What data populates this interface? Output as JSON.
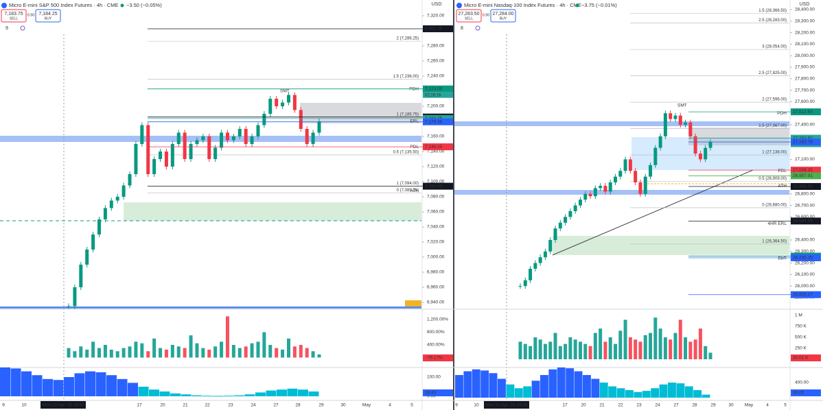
{
  "panels": [
    {
      "title": "Micro E-mini S&P 500 Index Futures · 4h · CME",
      "change": "−3.50 (−0.05%)",
      "sell_price": "7,183.75",
      "sell_label": "SELL",
      "spread": "0.50",
      "buy_price": "7,184.25",
      "buy_label": "BUY",
      "currency": "USD",
      "indicator_count": "9",
      "price_ticks": [
        {
          "value": 7320,
          "label": "7,320.00"
        },
        {
          "value": 7300,
          "label": "7,300.00"
        },
        {
          "value": 7280,
          "label": "7,280.00"
        },
        {
          "value": 7260,
          "label": "7,260.00"
        },
        {
          "value": 7240,
          "label": "7,240.00"
        },
        {
          "value": 7220,
          "label": "7,220.00"
        },
        {
          "value": 7200,
          "label": "7,200.00"
        },
        {
          "value": 7180,
          "label": "7,180.00"
        },
        {
          "value": 7160,
          "label": "7,160.00"
        },
        {
          "value": 7140,
          "label": "7,140.00"
        },
        {
          "value": 7120,
          "label": "7,120.00"
        },
        {
          "value": 7100,
          "label": "7,100.00"
        },
        {
          "value": 7080,
          "label": "7,080.00"
        },
        {
          "value": 7060,
          "label": "7,060.00"
        },
        {
          "value": 7040,
          "label": "7,040.00"
        },
        {
          "value": 7020,
          "label": "7,020.00"
        },
        {
          "value": 7000,
          "label": "7,000.00"
        },
        {
          "value": 6980,
          "label": "6,980.00"
        },
        {
          "value": 6960,
          "label": "6,960.00"
        },
        {
          "value": 6940,
          "label": "6,940.00"
        }
      ],
      "tags": [
        {
          "value": 7302.75,
          "label": "7,302.75",
          "color": "#131722"
        },
        {
          "value": 7223,
          "label": "7,223.00",
          "color": "#089981"
        },
        {
          "value": 7185.75,
          "label": "7,185.75",
          "color": "#131722"
        },
        {
          "value": 7183.75,
          "label": "7,183.75",
          "color": "#26a69a"
        },
        {
          "value": 7179.38,
          "label": "7,179.38",
          "color": "#2962ff"
        },
        {
          "value": 7146.25,
          "label": "7,146.25",
          "color": "#f23645"
        },
        {
          "value": 7094,
          "label": "7,094.00",
          "color": "#131722"
        }
      ],
      "countdown": "02:28:16",
      "fib_labels": [
        {
          "value": 7286.25,
          "label": "2 (7,286.25)"
        },
        {
          "value": 7236,
          "label": "1.5 (7,236.00)"
        },
        {
          "value": 7185.75,
          "label": "1 (7,185.75)"
        },
        {
          "value": 7135.5,
          "label": "0.5 (7,135.50)"
        },
        {
          "value": 7094,
          "label": "1 (7,094.00)"
        },
        {
          "value": 7085.25,
          "label": "0 (7,085.25)"
        }
      ],
      "level_labels": [
        {
          "value": 7223,
          "label": "PDH",
          "color": "#089981"
        },
        {
          "value": 7180,
          "label": "ERL",
          "color": "#131722"
        },
        {
          "value": 7146.25,
          "label": "PDL",
          "color": "#f23645"
        },
        {
          "value": 7088,
          "label": "ATH",
          "color": "#131722"
        }
      ],
      "smt": "SMT",
      "closes": [
        6935,
        6960,
        6990,
        7010,
        7030,
        7050,
        7065,
        7075,
        7080,
        7095,
        7110,
        7150,
        7175,
        7110,
        7130,
        7140,
        7120,
        7150,
        7165,
        7130,
        7150,
        7155,
        7160,
        7130,
        7145,
        7165,
        7155,
        7160,
        7170,
        7150,
        7160,
        7175,
        7190,
        7210,
        7200,
        7205,
        7215,
        7195,
        7170,
        7150,
        7165,
        7180
      ],
      "volume_ticks": [
        {
          "value": 1200,
          "label": "1,200.00%"
        },
        {
          "value": 800,
          "label": "800.00%"
        },
        {
          "value": 400,
          "label": "400.00%"
        }
      ],
      "volume_tag": "−79.17%",
      "volume": [
        300,
        200,
        350,
        250,
        500,
        300,
        400,
        250,
        200,
        300,
        350,
        500,
        450,
        200,
        600,
        300,
        250,
        400,
        350,
        300,
        700,
        450,
        300,
        250,
        350,
        500,
        1300,
        400,
        300,
        350,
        450,
        500,
        800,
        400,
        300,
        250,
        600,
        350,
        400,
        300,
        200,
        100
      ],
      "osc_ticks": [
        {
          "value": 100,
          "label": "100.00"
        },
        {
          "value": 0,
          "label": "0.00"
        }
      ],
      "osc_tag": "18.83",
      "oscillator": [
        150,
        145,
        130,
        110,
        90,
        85,
        100,
        120,
        130,
        125,
        110,
        90,
        70,
        50,
        35,
        25,
        15,
        10,
        5,
        3,
        2,
        3,
        5,
        10,
        20,
        30,
        35,
        40,
        35,
        25
      ],
      "time_labels": [
        "9",
        "10",
        "Mon 13 Apr '26  18:00",
        "17",
        "20",
        "21",
        "22",
        "23",
        "24",
        "27",
        "28",
        "29",
        "30",
        "May",
        "4",
        "5"
      ]
    },
    {
      "title": "Micro E-mini Nasdaq-100 Index Futures · 4h · CME",
      "change": "−3.75 (−0.01%)",
      "sell_price": "27,283.50",
      "sell_label": "SELL",
      "spread": "0.50",
      "buy_price": "27,284.00",
      "buy_label": "BUY",
      "currency": "USD",
      "indicator_count": "8",
      "price_ticks": [
        {
          "value": 28400,
          "label": "28,400.00"
        },
        {
          "value": 28300,
          "label": "28,300.00"
        },
        {
          "value": 28200,
          "label": "28,200.00"
        },
        {
          "value": 28100,
          "label": "28,100.00"
        },
        {
          "value": 28000,
          "label": "28,000.00"
        },
        {
          "value": 27900,
          "label": "27,900.00"
        },
        {
          "value": 27800,
          "label": "27,800.00"
        },
        {
          "value": 27700,
          "label": "27,700.00"
        },
        {
          "value": 27600,
          "label": "27,600.00"
        },
        {
          "value": 27400,
          "label": "27,400.00"
        },
        {
          "value": 27100,
          "label": "27,100.00"
        },
        {
          "value": 26800,
          "label": "26,800.00"
        },
        {
          "value": 26700,
          "label": "26,700.00"
        },
        {
          "value": 26600,
          "label": "26,600.00"
        },
        {
          "value": 26400,
          "label": "26,400.00"
        },
        {
          "value": 26300,
          "label": "26,300.00"
        },
        {
          "value": 26200,
          "label": "26,200.00"
        },
        {
          "value": 26100,
          "label": "26,100.00"
        },
        {
          "value": 26000,
          "label": "26,000.00"
        },
        {
          "value": 25900,
          "label": "25,900.00"
        }
      ],
      "tags": [
        {
          "value": 27512.5,
          "label": "27,512.50",
          "color": "#089981"
        },
        {
          "value": 27283.5,
          "label": "27,283.50",
          "color": "#26a69a"
        },
        {
          "value": 27250.78,
          "label": "27,250.78",
          "color": "#2962ff"
        },
        {
          "value": 27006.25,
          "label": "27,006.25",
          "color": "#f23645"
        },
        {
          "value": 26957.01,
          "label": "26,957.01",
          "color": "#4caf50"
        },
        {
          "value": 26864.5,
          "label": "26,864.50",
          "color": "#131722"
        },
        {
          "value": 26564.5,
          "label": "26,564.50",
          "color": "#131722"
        },
        {
          "value": 26259.75,
          "label": "26,259.75",
          "color": "#089981"
        },
        {
          "value": 26245.25,
          "label": "26,245.25",
          "color": "#2962ff"
        },
        {
          "value": 25925.27,
          "label": "25,925.27",
          "color": "#2962ff"
        }
      ],
      "countdown": "02:28:16",
      "fib_labels": [
        {
          "value": 28366.5,
          "label": "1.5 (28,366.50)"
        },
        {
          "value": 28283,
          "label": "2.5 (28,283.00)"
        },
        {
          "value": 28054,
          "label": "3 (28,054.00)"
        },
        {
          "value": 27825,
          "label": "2.5 (27,825.00)"
        },
        {
          "value": 27596,
          "label": "2 (27,596.00)"
        },
        {
          "value": 27367,
          "label": "1.5 (27,367.00)"
        },
        {
          "value": 27138,
          "label": "1 (27,138.00)"
        },
        {
          "value": 26909,
          "label": "0.5 (26,909.00)"
        },
        {
          "value": 26680,
          "label": "0 (26,680.00)"
        },
        {
          "value": 26364.5,
          "label": "1 (26,364.50)"
        }
      ],
      "level_labels": [
        {
          "value": 27500,
          "label": "PDH",
          "color": "#089981"
        },
        {
          "value": 27000,
          "label": "PDL",
          "color": "#f23645"
        },
        {
          "value": 26870,
          "label": "ATH",
          "color": "#131722"
        },
        {
          "value": 26540,
          "label": "4HR ERL",
          "color": "#131722"
        },
        {
          "value": 26240,
          "label": "BbR",
          "color": "#089981"
        }
      ],
      "smt": "SMT",
      "closes": [
        26000,
        26050,
        26150,
        26200,
        26250,
        26300,
        26400,
        26500,
        26550,
        26600,
        26650,
        26700,
        26750,
        26800,
        26780,
        26850,
        26870,
        26820,
        26900,
        26950,
        27000,
        27100,
        27000,
        26900,
        26800,
        26950,
        27050,
        27200,
        27300,
        27500,
        27450,
        27480,
        27400,
        27420,
        27300,
        27150,
        27100,
        27200,
        27250
      ],
      "volume_ticks": [
        {
          "value": 1000000,
          "label": "1 M"
        },
        {
          "value": 750000,
          "label": "750 K"
        },
        {
          "value": 500000,
          "label": "500 K"
        },
        {
          "value": 250000,
          "label": "250 K"
        }
      ],
      "volume_tag": "33.01 K",
      "volume": [
        400000,
        350000,
        300000,
        500000,
        450000,
        350000,
        400000,
        600000,
        300000,
        350000,
        500000,
        450000,
        400000,
        350000,
        300000,
        600000,
        700000,
        400000,
        500000,
        350000,
        650000,
        900000,
        500000,
        450000,
        400000,
        550000,
        600000,
        950000,
        700000,
        500000,
        450000,
        600000,
        900000,
        500000,
        400000,
        450000,
        700000,
        300000,
        150000
      ],
      "osc_ticks": [
        {
          "value": 400,
          "label": "400.00"
        }
      ],
      "osc_tag": "33.05",
      "oscillator": [
        600,
        700,
        750,
        720,
        650,
        500,
        350,
        250,
        300,
        450,
        600,
        750,
        800,
        780,
        700,
        600,
        500,
        400,
        300,
        250,
        200,
        150,
        180,
        250,
        350,
        400,
        380,
        300,
        200,
        80
      ],
      "time_labels": [
        "9",
        "10",
        "Mon 13 Apr '26  18:00",
        "17",
        "20",
        "21",
        "22",
        "23",
        "24",
        "27",
        "28",
        "29",
        "30",
        "May",
        "4",
        "5"
      ]
    }
  ]
}
